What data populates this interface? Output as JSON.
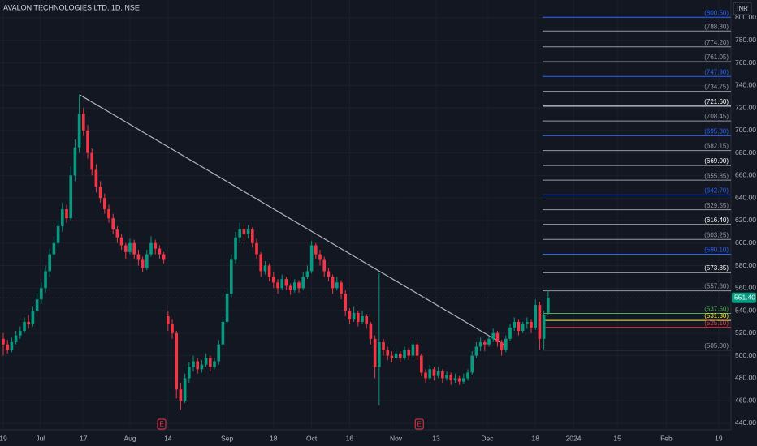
{
  "chart_data": {
    "type": "candlestick",
    "title": "AVALON TECHNOLOGIES LTD, 1D, NSE",
    "currency": "INR",
    "up_color": "#089981",
    "down_color": "#f23645",
    "candles": [
      [
        515,
        520,
        500,
        510
      ],
      [
        510,
        514,
        502,
        505
      ],
      [
        505,
        516,
        503,
        512
      ],
      [
        512,
        522,
        510,
        518
      ],
      [
        518,
        526,
        515,
        522
      ],
      [
        522,
        534,
        520,
        530
      ],
      [
        530,
        536,
        524,
        528
      ],
      [
        528,
        544,
        526,
        540
      ],
      [
        540,
        556,
        538,
        550
      ],
      [
        550,
        565,
        546,
        560
      ],
      [
        560,
        580,
        556,
        575
      ],
      [
        575,
        595,
        570,
        590
      ],
      [
        590,
        606,
        586,
        600
      ],
      [
        600,
        620,
        596,
        615
      ],
      [
        615,
        636,
        610,
        630
      ],
      [
        630,
        634,
        618,
        622
      ],
      [
        622,
        668,
        620,
        660
      ],
      [
        660,
        692,
        655,
        685
      ],
      [
        685,
        732,
        680,
        715
      ],
      [
        715,
        720,
        695,
        700
      ],
      [
        700,
        705,
        675,
        680
      ],
      [
        680,
        684,
        660,
        665
      ],
      [
        665,
        670,
        645,
        650
      ],
      [
        650,
        655,
        636,
        640
      ],
      [
        640,
        644,
        626,
        630
      ],
      [
        630,
        634,
        618,
        622
      ],
      [
        622,
        626,
        608,
        612
      ],
      [
        612,
        615,
        600,
        605
      ],
      [
        605,
        608,
        594,
        598
      ],
      [
        598,
        600,
        586,
        592
      ],
      [
        592,
        604,
        590,
        600
      ],
      [
        600,
        603,
        586,
        590
      ],
      [
        590,
        594,
        580,
        585
      ],
      [
        585,
        588,
        574,
        578
      ],
      [
        578,
        594,
        576,
        590
      ],
      [
        590,
        606,
        588,
        600
      ],
      [
        600,
        603,
        590,
        595
      ],
      [
        595,
        598,
        586,
        590
      ],
      [
        590,
        592,
        582,
        585
      ],
      [
        535,
        540,
        522,
        528
      ],
      [
        528,
        532,
        515,
        520
      ],
      [
        520,
        522,
        462,
        470
      ],
      [
        470,
        476,
        452,
        460
      ],
      [
        460,
        484,
        458,
        480
      ],
      [
        480,
        494,
        476,
        490
      ],
      [
        490,
        500,
        486,
        495
      ],
      [
        495,
        498,
        484,
        488
      ],
      [
        488,
        496,
        485,
        492
      ],
      [
        492,
        502,
        490,
        498
      ],
      [
        498,
        500,
        486,
        490
      ],
      [
        490,
        498,
        488,
        495
      ],
      [
        495,
        514,
        492,
        510
      ],
      [
        510,
        534,
        508,
        530
      ],
      [
        530,
        560,
        528,
        555
      ],
      [
        555,
        590,
        552,
        585
      ],
      [
        585,
        610,
        582,
        605
      ],
      [
        605,
        618,
        600,
        612
      ],
      [
        612,
        616,
        602,
        608
      ],
      [
        608,
        616,
        604,
        612
      ],
      [
        612,
        614,
        596,
        600
      ],
      [
        600,
        604,
        586,
        590
      ],
      [
        590,
        592,
        570,
        575
      ],
      [
        575,
        584,
        572,
        580
      ],
      [
        580,
        582,
        566,
        570
      ],
      [
        570,
        574,
        560,
        565
      ],
      [
        565,
        568,
        555,
        560
      ],
      [
        560,
        572,
        558,
        568
      ],
      [
        568,
        570,
        558,
        562
      ],
      [
        562,
        564,
        554,
        558
      ],
      [
        558,
        568,
        556,
        565
      ],
      [
        565,
        567,
        556,
        560
      ],
      [
        560,
        574,
        558,
        570
      ],
      [
        570,
        580,
        568,
        575
      ],
      [
        575,
        602,
        573,
        598
      ],
      [
        598,
        600,
        586,
        590
      ],
      [
        590,
        594,
        580,
        585
      ],
      [
        585,
        588,
        570,
        575
      ],
      [
        575,
        578,
        566,
        570
      ],
      [
        570,
        572,
        555,
        560
      ],
      [
        560,
        570,
        558,
        565
      ],
      [
        565,
        567,
        550,
        555
      ],
      [
        555,
        558,
        535,
        540
      ],
      [
        540,
        542,
        528,
        532
      ],
      [
        532,
        544,
        530,
        538
      ],
      [
        538,
        540,
        526,
        530
      ],
      [
        530,
        540,
        528,
        535
      ],
      [
        535,
        537,
        524,
        528
      ],
      [
        528,
        530,
        510,
        515
      ],
      [
        515,
        518,
        480,
        490
      ],
      [
        490,
        573,
        456,
        512
      ],
      [
        512,
        515,
        500,
        505
      ],
      [
        505,
        508,
        496,
        500
      ],
      [
        500,
        504,
        494,
        498
      ],
      [
        498,
        506,
        496,
        502
      ],
      [
        502,
        504,
        494,
        498
      ],
      [
        498,
        508,
        496,
        505
      ],
      [
        505,
        507,
        496,
        500
      ],
      [
        500,
        514,
        498,
        510
      ],
      [
        510,
        512,
        496,
        500
      ],
      [
        500,
        502,
        482,
        485
      ],
      [
        485,
        488,
        476,
        480
      ],
      [
        480,
        492,
        478,
        488
      ],
      [
        488,
        490,
        478,
        482
      ],
      [
        482,
        490,
        480,
        486
      ],
      [
        486,
        488,
        476,
        480
      ],
      [
        480,
        486,
        478,
        483
      ],
      [
        483,
        485,
        474,
        478
      ],
      [
        478,
        484,
        476,
        480
      ],
      [
        480,
        482,
        474,
        477
      ],
      [
        477,
        484,
        475,
        480
      ],
      [
        480,
        488,
        478,
        485
      ],
      [
        485,
        504,
        483,
        500
      ],
      [
        500,
        512,
        498,
        508
      ],
      [
        508,
        516,
        504,
        512
      ],
      [
        512,
        514,
        504,
        510
      ],
      [
        510,
        518,
        508,
        515
      ],
      [
        515,
        524,
        512,
        520
      ],
      [
        520,
        522,
        508,
        512
      ],
      [
        512,
        514,
        500,
        505
      ],
      [
        505,
        518,
        503,
        515
      ],
      [
        515,
        528,
        513,
        525
      ],
      [
        525,
        534,
        522,
        530
      ],
      [
        530,
        532,
        518,
        522
      ],
      [
        522,
        530,
        520,
        528
      ],
      [
        528,
        534,
        524,
        530
      ],
      [
        530,
        532,
        520,
        525
      ],
      [
        525,
        550,
        523,
        545
      ],
      [
        545,
        548,
        505,
        515
      ],
      [
        515,
        540,
        505,
        536
      ],
      [
        538,
        558,
        536,
        551.4
      ]
    ],
    "xlim": [
      -0.77,
      172.3
    ],
    "xticks": [
      {
        "value": 0,
        "label": "19"
      },
      {
        "value": 8.8,
        "label": "Jul"
      },
      {
        "value": 19,
        "label": "17"
      },
      {
        "value": 30,
        "label": "Aug"
      },
      {
        "value": 39,
        "label": "14"
      },
      {
        "value": 53,
        "label": "Sep"
      },
      {
        "value": 64,
        "label": "18"
      },
      {
        "value": 73,
        "label": "Oct"
      },
      {
        "value": 82,
        "label": "16"
      },
      {
        "value": 93,
        "label": "Nov"
      },
      {
        "value": 102.5,
        "label": "13"
      },
      {
        "value": 114.6,
        "label": "Dec"
      },
      {
        "value": 126,
        "label": "18"
      },
      {
        "value": 135,
        "label": "2024"
      },
      {
        "value": 145.4,
        "label": "15"
      },
      {
        "value": 157,
        "label": "Feb"
      },
      {
        "value": 169.4,
        "label": "19"
      }
    ],
    "ylim": [
      434.2,
      815.8
    ],
    "yticks": [
      {
        "value": 440,
        "label": "440.00"
      },
      {
        "value": 460,
        "label": "460.00"
      },
      {
        "value": 480,
        "label": "480.00"
      },
      {
        "value": 500,
        "label": "500.00"
      },
      {
        "value": 520,
        "label": "520.00"
      },
      {
        "value": 540,
        "label": "540.00"
      },
      {
        "value": 560,
        "label": "560.00"
      },
      {
        "value": 580,
        "label": "580.00"
      },
      {
        "value": 600,
        "label": "600.00"
      },
      {
        "value": 620,
        "label": "620.00"
      },
      {
        "value": 640,
        "label": "640.00"
      },
      {
        "value": 660,
        "label": "660.00"
      },
      {
        "value": 680,
        "label": "680.00"
      },
      {
        "value": 700,
        "label": "700.00"
      },
      {
        "value": 720,
        "label": "720.00"
      },
      {
        "value": 740,
        "label": "740.00"
      },
      {
        "value": 760,
        "label": "760.00"
      },
      {
        "value": 780,
        "label": "780.00"
      },
      {
        "value": 800,
        "label": "800.00"
      }
    ],
    "grid": true,
    "levels": [
      {
        "value": 800.5,
        "label": "(800.50)",
        "color": "#2962ff"
      },
      {
        "value": 788.3,
        "label": "(788.30)",
        "color": "#9598a1"
      },
      {
        "value": 774.2,
        "label": "(774.20)",
        "color": "#9598a1"
      },
      {
        "value": 761.05,
        "label": "(761.05)",
        "color": "#9598a1"
      },
      {
        "value": 747.9,
        "label": "(747.90)",
        "color": "#2962ff"
      },
      {
        "value": 734.75,
        "label": "(734.75)",
        "color": "#9598a1"
      },
      {
        "value": 721.6,
        "label": "(721.60)",
        "color": "#ffffff"
      },
      {
        "value": 708.45,
        "label": "(708.45)",
        "color": "#9598a1"
      },
      {
        "value": 695.3,
        "label": "(695.30)",
        "color": "#2962ff"
      },
      {
        "value": 682.15,
        "label": "(682.15)",
        "color": "#9598a1"
      },
      {
        "value": 669,
        "label": "(669.00)",
        "color": "#ffffff"
      },
      {
        "value": 655.85,
        "label": "(655.85)",
        "color": "#9598a1"
      },
      {
        "value": 642.7,
        "label": "(642.70)",
        "color": "#2962ff"
      },
      {
        "value": 629.55,
        "label": "(629.55)",
        "color": "#9598a1"
      },
      {
        "value": 616.4,
        "label": "(616.40)",
        "color": "#ffffff"
      },
      {
        "value": 603.25,
        "label": "(603.25)",
        "color": "#9598a1"
      },
      {
        "value": 590.1,
        "label": "(590.10)",
        "color": "#2962ff"
      },
      {
        "value": 573.85,
        "label": "(573.85)",
        "color": "#ffffff"
      },
      {
        "value": 557.6,
        "label": "(557.60)",
        "color": "#9598a1"
      },
      {
        "value": 537.5,
        "label": "(537.50)",
        "color": "#4caf50"
      },
      {
        "value": 531.3,
        "label": "(531.30)",
        "color": "#ffeb3b"
      },
      {
        "value": 525.1,
        "label": "(525.10)",
        "color": "#f23645"
      },
      {
        "value": 505,
        "label": "(505.00)",
        "color": "#9598a1"
      }
    ],
    "last_price": {
      "value": 551.4,
      "label": "551.40"
    },
    "trendline": {
      "x": [
        18.1,
        118.5
      ],
      "y": [
        731.6,
        510
      ],
      "color": "#b2b5be"
    },
    "events": [
      {
        "x": 37.5,
        "label": "E"
      },
      {
        "x": 98.5,
        "label": "E"
      }
    ]
  }
}
